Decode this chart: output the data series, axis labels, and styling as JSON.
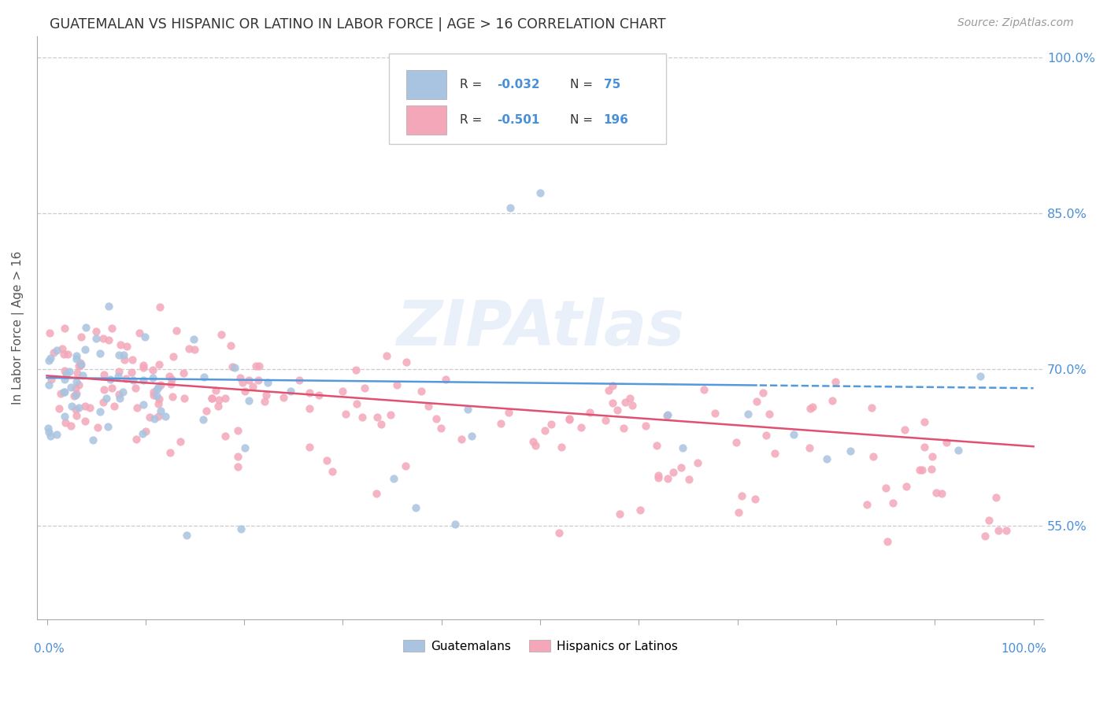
{
  "title": "GUATEMALAN VS HISPANIC OR LATINO IN LABOR FORCE | AGE > 16 CORRELATION CHART",
  "source": "Source: ZipAtlas.com",
  "ylabel": "In Labor Force | Age > 16",
  "ylim": [
    0.46,
    1.02
  ],
  "xlim": [
    -0.01,
    1.01
  ],
  "blue_color": "#a8c4e0",
  "pink_color": "#f4a7b9",
  "blue_line_color": "#5599dd",
  "pink_line_color": "#e05070",
  "R_blue": -0.032,
  "N_blue": 75,
  "R_pink": -0.501,
  "N_pink": 196,
  "legend_label_blue": "Guatemalans",
  "legend_label_pink": "Hispanics or Latinos",
  "watermark": "ZIPAtlas",
  "background_color": "#ffffff",
  "grid_color": "#cccccc",
  "title_color": "#333333",
  "axis_label_color": "#4a90d9",
  "ytick_vals": [
    0.55,
    0.7,
    0.85,
    1.0
  ],
  "ytick_labels": [
    "55.0%",
    "70.0%",
    "85.0%",
    "100.0%"
  ],
  "xtick_vals": [
    0.0,
    0.1,
    0.2,
    0.3,
    0.4,
    0.5,
    0.6,
    0.7,
    0.8,
    0.9,
    1.0
  ]
}
